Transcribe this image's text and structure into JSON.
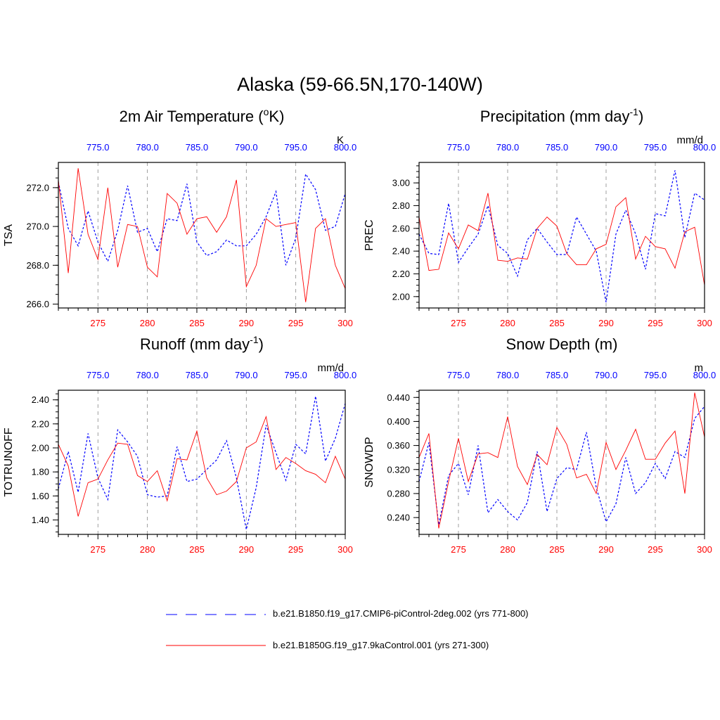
{
  "title": "Alaska (59-66.5N,170-140W)",
  "legend": {
    "entries": [
      {
        "label": "b.e21.B1850.f19_g17.CMIP6-piControl-2deg.002 (yrs 771-800)",
        "color": "#0000ff",
        "style": "dashed"
      },
      {
        "label": "b.e21.B1850G.f19_g17.9kaControl.001 (yrs 271-300)",
        "color": "#ff0000",
        "style": "solid"
      }
    ]
  },
  "chart_data": [
    {
      "type": "line",
      "title": "2m Air Temperature",
      "title_unit_pre": "(",
      "title_unit_sup": "o",
      "title_unit_post": "K)",
      "ylabel": "TSA",
      "units": "K",
      "ylim": [
        265.8,
        273.3
      ],
      "yticks": [
        266.0,
        268.0,
        270.0,
        272.0
      ],
      "ytick_labels": [
        "266.0",
        "268.0",
        "270.0",
        "272.0"
      ],
      "yminor": 0.5,
      "xlim_bottom": [
        271,
        300
      ],
      "xticks_bottom": [
        275,
        280,
        285,
        290,
        295,
        300
      ],
      "xlim_top": [
        771,
        800
      ],
      "xticks_top": [
        775,
        780,
        785,
        790,
        795,
        800
      ],
      "xtick_labels_top": [
        "775.0",
        "780.0",
        "785.0",
        "790.0",
        "795.0",
        "800.0"
      ],
      "series": [
        {
          "name": "b.e21.B1850.f19_g17.CMIP6-piControl-2deg.002",
          "color": "#0000ff",
          "dash": true,
          "x": [
            771,
            772,
            773,
            774,
            775,
            776,
            777,
            778,
            779,
            780,
            781,
            782,
            783,
            784,
            785,
            786,
            787,
            788,
            789,
            790,
            791,
            792,
            793,
            794,
            795,
            796,
            797,
            798,
            799,
            800
          ],
          "values": [
            272.3,
            269.9,
            269.0,
            270.8,
            269.2,
            268.2,
            269.8,
            272.1,
            269.7,
            269.9,
            268.7,
            270.4,
            270.3,
            272.2,
            269.2,
            268.5,
            268.7,
            269.3,
            269.0,
            269.0,
            269.6,
            270.5,
            271.8,
            268.0,
            269.4,
            272.7,
            271.9,
            269.8,
            270.0,
            271.7
          ]
        },
        {
          "name": "b.e21.B1850G.f19_g17.9kaControl.001",
          "color": "#ff0000",
          "dash": false,
          "x": [
            271,
            272,
            273,
            274,
            275,
            276,
            277,
            278,
            279,
            280,
            281,
            282,
            283,
            284,
            285,
            286,
            287,
            288,
            289,
            290,
            291,
            292,
            293,
            294,
            295,
            296,
            297,
            298,
            299,
            300
          ],
          "values": [
            272.4,
            267.6,
            273.0,
            269.6,
            268.3,
            272.0,
            267.9,
            270.1,
            270.0,
            267.9,
            267.4,
            271.7,
            271.2,
            269.6,
            270.4,
            270.5,
            269.7,
            270.5,
            272.4,
            266.9,
            268.0,
            270.4,
            270.0,
            270.1,
            270.2,
            266.1,
            269.9,
            270.4,
            268.0,
            266.8
          ]
        }
      ]
    },
    {
      "type": "line",
      "title": "Precipitation",
      "title_unit_pre": "(mm day",
      "title_unit_sup": "-1",
      "title_unit_post": ")",
      "ylabel": "PREC",
      "units": "mm/d",
      "ylim": [
        1.9,
        3.18
      ],
      "yticks": [
        2.0,
        2.2,
        2.4,
        2.6,
        2.8,
        3.0
      ],
      "ytick_labels": [
        "2.00",
        "2.20",
        "2.40",
        "2.60",
        "2.80",
        "3.00"
      ],
      "yminor": 0.05,
      "xlim_bottom": [
        271,
        300
      ],
      "xticks_bottom": [
        275,
        280,
        285,
        290,
        295,
        300
      ],
      "xlim_top": [
        771,
        800
      ],
      "xticks_top": [
        775,
        780,
        785,
        790,
        795,
        800
      ],
      "xtick_labels_top": [
        "775.0",
        "780.0",
        "785.0",
        "790.0",
        "795.0",
        "800.0"
      ],
      "series": [
        {
          "name": "b.e21.B1850.f19_g17.CMIP6-piControl-2deg.002",
          "color": "#0000ff",
          "dash": true,
          "x": [
            771,
            772,
            773,
            774,
            775,
            776,
            777,
            778,
            779,
            780,
            781,
            782,
            783,
            784,
            785,
            786,
            787,
            788,
            789,
            790,
            791,
            792,
            793,
            794,
            795,
            796,
            797,
            798,
            799,
            800
          ],
          "values": [
            2.55,
            2.38,
            2.37,
            2.82,
            2.3,
            2.43,
            2.55,
            2.8,
            2.45,
            2.38,
            2.18,
            2.5,
            2.6,
            2.48,
            2.37,
            2.37,
            2.7,
            2.55,
            2.4,
            1.95,
            2.55,
            2.76,
            2.55,
            2.24,
            2.73,
            2.71,
            3.11,
            2.52,
            2.91,
            2.85
          ]
        },
        {
          "name": "b.e21.B1850G.f19_g17.9kaControl.001",
          "color": "#ff0000",
          "dash": false,
          "x": [
            271,
            272,
            273,
            274,
            275,
            276,
            277,
            278,
            279,
            280,
            281,
            282,
            283,
            284,
            285,
            286,
            287,
            288,
            289,
            290,
            291,
            292,
            293,
            294,
            295,
            296,
            297,
            298,
            299,
            300
          ],
          "values": [
            2.7,
            2.23,
            2.24,
            2.56,
            2.42,
            2.63,
            2.58,
            2.91,
            2.32,
            2.31,
            2.34,
            2.33,
            2.6,
            2.7,
            2.62,
            2.38,
            2.28,
            2.28,
            2.42,
            2.46,
            2.79,
            2.87,
            2.33,
            2.53,
            2.44,
            2.42,
            2.25,
            2.57,
            2.61,
            2.1
          ]
        }
      ]
    },
    {
      "type": "line",
      "title": "Runoff",
      "title_unit_pre": "(mm day",
      "title_unit_sup": "-1",
      "title_unit_post": ")",
      "ylabel": "TOTRUNOFF",
      "units": "mm/d",
      "ylim": [
        1.28,
        2.48
      ],
      "yticks": [
        1.4,
        1.6,
        1.8,
        2.0,
        2.2,
        2.4
      ],
      "ytick_labels": [
        "1.40",
        "1.60",
        "1.80",
        "2.00",
        "2.20",
        "2.40"
      ],
      "yminor": 0.05,
      "xlim_bottom": [
        271,
        300
      ],
      "xticks_bottom": [
        275,
        280,
        285,
        290,
        295,
        300
      ],
      "xlim_top": [
        771,
        800
      ],
      "xticks_top": [
        775,
        780,
        785,
        790,
        795,
        800
      ],
      "xtick_labels_top": [
        "775.0",
        "780.0",
        "785.0",
        "790.0",
        "795.0",
        "800.0"
      ],
      "series": [
        {
          "name": "b.e21.B1850.f19_g17.CMIP6-piControl-2deg.002",
          "color": "#0000ff",
          "dash": true,
          "x": [
            771,
            772,
            773,
            774,
            775,
            776,
            777,
            778,
            779,
            780,
            781,
            782,
            783,
            784,
            785,
            786,
            787,
            788,
            789,
            790,
            791,
            792,
            793,
            794,
            795,
            796,
            797,
            798,
            799,
            800
          ],
          "values": [
            1.66,
            1.97,
            1.63,
            2.12,
            1.75,
            1.57,
            2.15,
            2.05,
            1.93,
            1.61,
            1.59,
            1.6,
            2.01,
            1.72,
            1.74,
            1.82,
            1.9,
            2.06,
            1.75,
            1.32,
            1.67,
            2.19,
            1.96,
            1.73,
            2.03,
            1.95,
            2.43,
            1.89,
            2.08,
            2.37
          ]
        },
        {
          "name": "b.e21.B1850G.f19_g17.9kaControl.001",
          "color": "#ff0000",
          "dash": false,
          "x": [
            271,
            272,
            273,
            274,
            275,
            276,
            277,
            278,
            279,
            280,
            281,
            282,
            283,
            284,
            285,
            286,
            287,
            288,
            289,
            290,
            291,
            292,
            293,
            294,
            295,
            296,
            297,
            298,
            299,
            300
          ],
          "values": [
            2.03,
            1.85,
            1.43,
            1.71,
            1.74,
            1.9,
            2.04,
            2.03,
            1.77,
            1.72,
            1.81,
            1.56,
            1.91,
            1.9,
            2.14,
            1.75,
            1.61,
            1.64,
            1.72,
            2.0,
            2.05,
            2.26,
            1.82,
            1.92,
            1.87,
            1.81,
            1.78,
            1.71,
            1.93,
            1.74
          ]
        }
      ]
    },
    {
      "type": "line",
      "title": "Snow Depth (m)",
      "title_unit_pre": "",
      "title_unit_sup": "",
      "title_unit_post": "",
      "ylabel": "SNOWDP",
      "units": "m",
      "ylim": [
        0.212,
        0.452
      ],
      "yticks": [
        0.24,
        0.28,
        0.32,
        0.36,
        0.4,
        0.44
      ],
      "ytick_labels": [
        "0.240",
        "0.280",
        "0.320",
        "0.360",
        "0.400",
        "0.440"
      ],
      "yminor": 0.01,
      "xlim_bottom": [
        271,
        300
      ],
      "xticks_bottom": [
        275,
        280,
        285,
        290,
        295,
        300
      ],
      "xlim_top": [
        771,
        800
      ],
      "xticks_top": [
        775,
        780,
        785,
        790,
        795,
        800
      ],
      "xtick_labels_top": [
        "775.0",
        "780.0",
        "785.0",
        "790.0",
        "795.0",
        "800.0"
      ],
      "series": [
        {
          "name": "b.e21.B1850.f19_g17.CMIP6-piControl-2deg.002",
          "color": "#0000ff",
          "dash": true,
          "x": [
            771,
            772,
            773,
            774,
            775,
            776,
            777,
            778,
            779,
            780,
            781,
            782,
            783,
            784,
            785,
            786,
            787,
            788,
            789,
            790,
            791,
            792,
            793,
            794,
            795,
            796,
            797,
            798,
            799,
            800
          ],
          "values": [
            0.3,
            0.365,
            0.228,
            0.31,
            0.33,
            0.278,
            0.36,
            0.248,
            0.27,
            0.25,
            0.236,
            0.265,
            0.35,
            0.25,
            0.305,
            0.323,
            0.32,
            0.382,
            0.29,
            0.233,
            0.263,
            0.34,
            0.28,
            0.298,
            0.33,
            0.305,
            0.35,
            0.34,
            0.405,
            0.425
          ]
        },
        {
          "name": "b.e21.B1850G.f19_g17.9kaControl.001",
          "color": "#ff0000",
          "dash": false,
          "x": [
            271,
            272,
            273,
            274,
            275,
            276,
            277,
            278,
            279,
            280,
            281,
            282,
            283,
            284,
            285,
            286,
            287,
            288,
            289,
            290,
            291,
            292,
            293,
            294,
            295,
            296,
            297,
            298,
            299,
            300
          ],
          "values": [
            0.34,
            0.38,
            0.222,
            0.3,
            0.372,
            0.3,
            0.346,
            0.348,
            0.34,
            0.408,
            0.325,
            0.295,
            0.345,
            0.328,
            0.39,
            0.362,
            0.306,
            0.312,
            0.28,
            0.365,
            0.32,
            0.352,
            0.387,
            0.337,
            0.337,
            0.364,
            0.384,
            0.28,
            0.448,
            0.374
          ]
        }
      ]
    }
  ]
}
